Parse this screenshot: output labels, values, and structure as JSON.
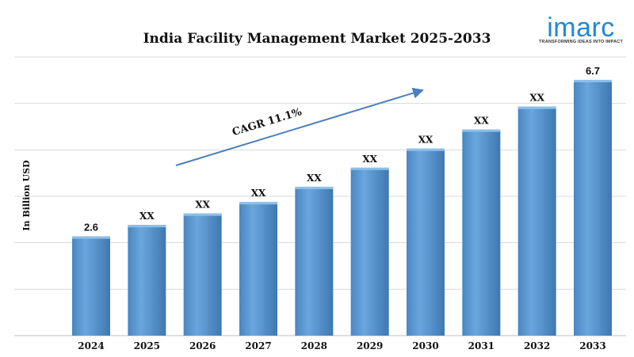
{
  "brand": {
    "name": "imarc",
    "tagline": "TRANSFORMING IDEAS INTO IMPACT",
    "color": "#1e88d6"
  },
  "chart_data": {
    "type": "bar",
    "title": "India Facility Management Market 2025-2033",
    "ylabel": "In Billion USD",
    "xlabel": "",
    "categories": [
      "2024",
      "2025",
      "2026",
      "2027",
      "2028",
      "2029",
      "2030",
      "2031",
      "2032",
      "2033"
    ],
    "values": [
      2.6,
      2.9,
      3.2,
      3.5,
      3.9,
      4.4,
      4.9,
      5.4,
      6.0,
      6.7
    ],
    "data_labels": [
      "2.6",
      "XX",
      "XX",
      "XX",
      "XX",
      "XX",
      "XX",
      "XX",
      "XX",
      "6.7"
    ],
    "ylim": [
      0,
      7.3
    ],
    "grid": true,
    "annotation": "CAGR 11.1%",
    "bar_color": "#5b9bd5"
  }
}
